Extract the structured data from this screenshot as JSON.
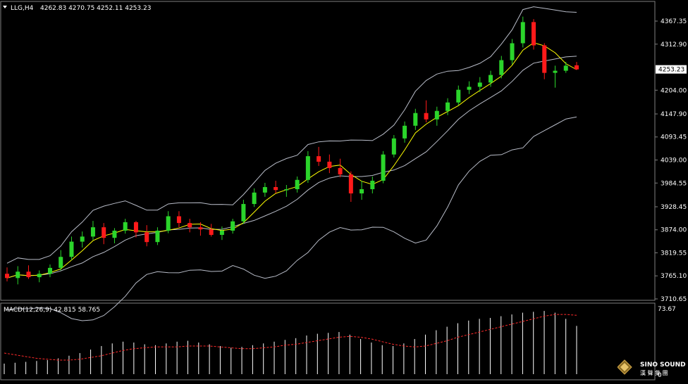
{
  "header": {
    "symbol_label": "LLG,H4",
    "ohlc_text": "4262.83 4270.75 4252.11 4253.23"
  },
  "current_price": "4253.23",
  "price_axis_ticks": [
    "4367.35",
    "4312.90",
    "4253.23",
    "4204.00",
    "4147.90",
    "4093.45",
    "4039.00",
    "3984.55",
    "3928.45",
    "3874.00",
    "3819.55",
    "3765.10",
    "3710.65"
  ],
  "macd": {
    "label": "MACD(12,26,9) 42.815 58.765",
    "axis_top": "73.67",
    "axis_bottom": "0"
  },
  "logo": {
    "text": "SINO SOUND",
    "subtext": "漢 聲 集 團"
  },
  "colors": {
    "up": "#2bd52b",
    "down": "#ff1a1a",
    "ma": "#ffff00",
    "band": "#b8bcc8",
    "macd_signal": "#ff2a2a",
    "macd_hist": "#ffffff"
  },
  "chart_data": [
    {
      "type": "candlestick",
      "title": "",
      "ylim": [
        3710.65,
        4390
      ],
      "grid": false,
      "indicators": [
        "bollinger bands (upper, middle, lower)",
        "moving average"
      ],
      "series": [
        {
          "name": "",
          "values": [
            [
              3770,
              3785,
              3752,
              3760
            ],
            [
              3760,
              3788,
              3745,
              3775
            ],
            [
              3775,
              3790,
              3758,
              3762
            ],
            [
              3762,
              3778,
              3750,
              3770
            ],
            [
              3770,
              3792,
              3762,
              3784
            ],
            [
              3784,
              3826,
              3778,
              3810
            ],
            [
              3810,
              3858,
              3802,
              3846
            ],
            [
              3846,
              3870,
              3832,
              3858
            ],
            [
              3858,
              3895,
              3850,
              3880
            ],
            [
              3880,
              3890,
              3840,
              3855
            ],
            [
              3855,
              3878,
              3842,
              3872
            ],
            [
              3872,
              3900,
              3865,
              3892
            ],
            [
              3892,
              3895,
              3856,
              3868
            ],
            [
              3868,
              3885,
              3835,
              3845
            ],
            [
              3845,
              3880,
              3838,
              3872
            ],
            [
              3872,
              3918,
              3866,
              3906
            ],
            [
              3906,
              3918,
              3880,
              3890
            ],
            [
              3890,
              3900,
              3868,
              3880
            ],
            [
              3880,
              3892,
              3860,
              3875
            ],
            [
              3875,
              3888,
              3858,
              3862
            ],
            [
              3862,
              3882,
              3850,
              3872
            ],
            [
              3872,
              3900,
              3865,
              3894
            ],
            [
              3894,
              3945,
              3888,
              3935
            ],
            [
              3935,
              3972,
              3928,
              3962
            ],
            [
              3962,
              3985,
              3952,
              3975
            ],
            [
              3975,
              3990,
              3960,
              3968
            ],
            [
              3968,
              3980,
              3952,
              3970
            ],
            [
              3970,
              4000,
              3962,
              3992
            ],
            [
              3992,
              4060,
              3985,
              4048
            ],
            [
              4048,
              4070,
              4025,
              4035
            ],
            [
              4035,
              4052,
              4008,
              4020
            ],
            [
              4020,
              4042,
              3998,
              4005
            ],
            [
              4005,
              4012,
              3940,
              3960
            ],
            [
              3960,
              3990,
              3945,
              3970
            ],
            [
              3970,
              4000,
              3960,
              3990
            ],
            [
              3990,
              4060,
              3984,
              4052
            ],
            [
              4052,
              4098,
              4045,
              4090
            ],
            [
              4090,
              4130,
              4080,
              4120
            ],
            [
              4120,
              4160,
              4110,
              4150
            ],
            [
              4150,
              4180,
              4128,
              4135
            ],
            [
              4135,
              4165,
              4120,
              4155
            ],
            [
              4155,
              4185,
              4145,
              4175
            ],
            [
              4175,
              4215,
              4168,
              4205
            ],
            [
              4205,
              4225,
              4195,
              4212
            ],
            [
              4212,
              4235,
              4200,
              4222
            ],
            [
              4222,
              4250,
              4212,
              4240
            ],
            [
              4240,
              4285,
              4232,
              4275
            ],
            [
              4275,
              4325,
              4265,
              4315
            ],
            [
              4315,
              4378,
              4305,
              4365
            ],
            [
              4365,
              4372,
              4300,
              4310
            ],
            [
              4310,
              4315,
              4230,
              4245
            ],
            [
              4245,
              4262,
              4210,
              4250
            ],
            [
              4250,
              4271,
              4245,
              4262
            ],
            [
              4262.83,
              4270.75,
              4252.11,
              4253.23
            ]
          ]
        }
      ]
    },
    {
      "type": "bar",
      "title": "MACD(12,26,9)",
      "ylim": [
        0,
        73.67
      ],
      "series": [
        {
          "name": "",
          "values": [
            12,
            13,
            14,
            15,
            16,
            18,
            21,
            24,
            28,
            32,
            35,
            37,
            36,
            34,
            33,
            35,
            37,
            38,
            36,
            34,
            32,
            30,
            31,
            33,
            35,
            37,
            39,
            41,
            44,
            46,
            47,
            48,
            45,
            40,
            36,
            33,
            32,
            35,
            40,
            45,
            50,
            54,
            58,
            61,
            63,
            64,
            66,
            68,
            70,
            71,
            72,
            70,
            63,
            55
          ]
        },
        {
          "name": "",
          "values": [
            24,
            22,
            20,
            18,
            17,
            16,
            16,
            17,
            19,
            21,
            24,
            27,
            29,
            30,
            31,
            31,
            31,
            32,
            32,
            32,
            31,
            30,
            29,
            29,
            30,
            31,
            33,
            34,
            36,
            38,
            40,
            42,
            43,
            42,
            40,
            37,
            34,
            32,
            31,
            32,
            35,
            38,
            42,
            45,
            48,
            51,
            54,
            57,
            60,
            63,
            66,
            68,
            68,
            67
          ]
        }
      ]
    }
  ]
}
